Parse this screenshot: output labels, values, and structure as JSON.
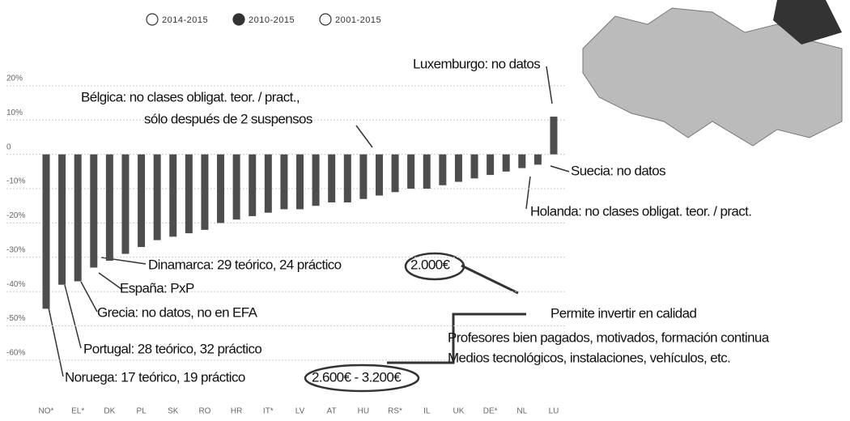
{
  "chart_data": {
    "type": "bar",
    "period_options": [
      "2014-2015",
      "2010-2015",
      "2001-2015"
    ],
    "selected_option": 1,
    "categories": [
      "NO*",
      null,
      "EL*",
      null,
      "DK",
      null,
      "PL",
      null,
      "SK",
      null,
      "RO",
      null,
      "HR",
      null,
      "IT*",
      null,
      "LV",
      null,
      "AT",
      null,
      "HU",
      null,
      "RS*",
      null,
      "IL",
      null,
      "UK",
      null,
      "DE*",
      null,
      "NL",
      null,
      "LU"
    ],
    "values": [
      -45,
      -38,
      -37,
      -33,
      -31,
      -29,
      -27,
      -25,
      -24,
      -23,
      -22,
      -20,
      -19,
      -18,
      -17,
      -16,
      -16,
      -15,
      -14,
      -14,
      -13,
      -12,
      -11,
      -10,
      -10,
      -9,
      -8,
      -7,
      -6,
      -5,
      -4,
      -3,
      11
    ],
    "color": "#4d4d4d",
    "ylim": [
      -73,
      45
    ],
    "yticks": [
      {
        "value": 20,
        "label": "20%"
      },
      {
        "value": 10,
        "label": "10%"
      },
      0,
      {
        "value": -10,
        "label": "-10%"
      },
      {
        "value": -20,
        "label": "-20%"
      },
      {
        "value": -30,
        "label": "-30%"
      },
      {
        "value": -40,
        "label": "-40%"
      },
      {
        "value": -50,
        "label": "-50%"
      },
      {
        "value": -60,
        "label": "-60%"
      }
    ],
    "grid": true,
    "annotations": [
      "Luxemburgo: no datos",
      "Bélgica: no clases obligat. teor. / pract.,",
      "sólo después de 2 suspensos",
      "Suecia: no datos",
      "Holanda: no clases obligat. teor. / pract.",
      "Dinamarca: 29 teórico, 24 práctico",
      "2.000€",
      "España: PxP",
      "Grecia: no datos, no en EFA",
      "Permite invertir en calidad",
      "Profesores bien pagados, motivados, formación continua",
      "Medios tecnológicos, instalaciones, vehículos, etc.",
      "Portugal: 28 teórico, 32 práctico",
      "Noruega: 17 teórico, 19 práctico",
      "2.600€ - 3.200€"
    ]
  }
}
